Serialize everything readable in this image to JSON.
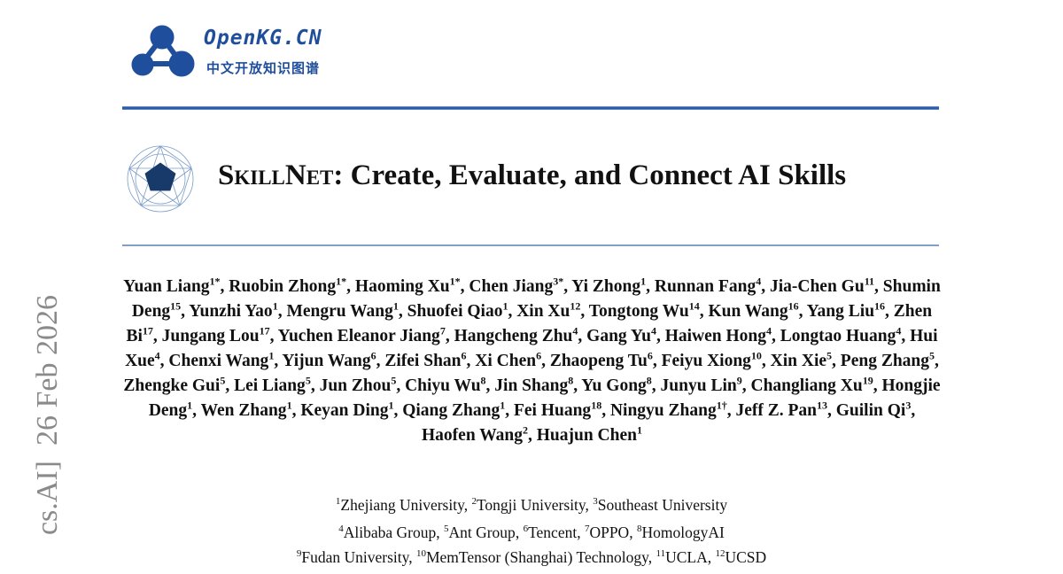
{
  "logo": {
    "name": "OpenKG.CN",
    "subtitle": "中文开放知识图谱"
  },
  "side_stamp": "cs.AI]  26 Feb 2026",
  "title": {
    "smallcaps": "SkillNet",
    "rest": ": Create, Evaluate, and Connect AI Skills"
  },
  "separator": ", ",
  "authors": [
    {
      "name": "Yuan Liang",
      "aff": "1*"
    },
    {
      "name": "Ruobin Zhong",
      "aff": "1*"
    },
    {
      "name": "Haoming Xu",
      "aff": "1*"
    },
    {
      "name": "Chen Jiang",
      "aff": "3*"
    },
    {
      "name": "Yi Zhong",
      "aff": "1"
    },
    {
      "name": "Runnan Fang",
      "aff": "4"
    },
    {
      "name": "Jia-Chen Gu",
      "aff": "11"
    },
    {
      "name": "Shumin Deng",
      "aff": "15"
    },
    {
      "name": "Yunzhi Yao",
      "aff": "1"
    },
    {
      "name": "Mengru Wang",
      "aff": "1"
    },
    {
      "name": "Shuofei Qiao",
      "aff": "1"
    },
    {
      "name": "Xin Xu",
      "aff": "12"
    },
    {
      "name": "Tongtong Wu",
      "aff": "14"
    },
    {
      "name": "Kun Wang",
      "aff": "16"
    },
    {
      "name": "Yang Liu",
      "aff": "16"
    },
    {
      "name": "Zhen Bi",
      "aff": "17"
    },
    {
      "name": "Jungang Lou",
      "aff": "17"
    },
    {
      "name": "Yuchen Eleanor Jiang",
      "aff": "7"
    },
    {
      "name": "Hangcheng Zhu",
      "aff": "4"
    },
    {
      "name": "Gang Yu",
      "aff": "4"
    },
    {
      "name": "Haiwen Hong",
      "aff": "4"
    },
    {
      "name": "Longtao Huang",
      "aff": "4"
    },
    {
      "name": "Hui Xue",
      "aff": "4"
    },
    {
      "name": "Chenxi Wang",
      "aff": "1"
    },
    {
      "name": "Yijun Wang",
      "aff": "6"
    },
    {
      "name": "Zifei Shan",
      "aff": "6"
    },
    {
      "name": "Xi Chen",
      "aff": "6"
    },
    {
      "name": "Zhaopeng Tu",
      "aff": "6"
    },
    {
      "name": "Feiyu Xiong",
      "aff": "10"
    },
    {
      "name": "Xin Xie",
      "aff": "5"
    },
    {
      "name": "Peng Zhang",
      "aff": "5"
    },
    {
      "name": "Zhengke Gui",
      "aff": "5"
    },
    {
      "name": "Lei Liang",
      "aff": "5"
    },
    {
      "name": "Jun Zhou",
      "aff": "5"
    },
    {
      "name": "Chiyu Wu",
      "aff": "8"
    },
    {
      "name": "Jin Shang",
      "aff": "8"
    },
    {
      "name": "Yu Gong",
      "aff": "8"
    },
    {
      "name": "Junyu Lin",
      "aff": "9"
    },
    {
      "name": "Changliang Xu",
      "aff": "19"
    },
    {
      "name": "Hongjie Deng",
      "aff": "1"
    },
    {
      "name": "Wen Zhang",
      "aff": "1"
    },
    {
      "name": "Keyan Ding",
      "aff": "1"
    },
    {
      "name": "Qiang Zhang",
      "aff": "1"
    },
    {
      "name": "Fei Huang",
      "aff": "18"
    },
    {
      "name": "Ningyu Zhang",
      "aff": "1†"
    },
    {
      "name": "Jeff Z. Pan",
      "aff": "13"
    },
    {
      "name": "Guilin Qi",
      "aff": "3"
    },
    {
      "name": "Haofen Wang",
      "aff": "2"
    },
    {
      "name": "Huajun Chen",
      "aff": "1"
    }
  ],
  "affiliations": [
    [
      {
        "num": "1",
        "name": "Zhejiang University"
      },
      {
        "num": "2",
        "name": "Tongji University"
      },
      {
        "num": "3",
        "name": "Southeast University"
      }
    ],
    [
      {
        "num": "4",
        "name": "Alibaba Group"
      },
      {
        "num": "5",
        "name": "Ant Group"
      },
      {
        "num": "6",
        "name": "Tencent"
      },
      {
        "num": "7",
        "name": "OPPO"
      },
      {
        "num": "8",
        "name": "HomologyAI"
      }
    ],
    [
      {
        "num": "9",
        "name": "Fudan University"
      },
      {
        "num": "10",
        "name": "MemTensor (Shanghai) Technology"
      },
      {
        "num": "11",
        "name": "UCLA"
      },
      {
        "num": "12",
        "name": "UCSD"
      }
    ]
  ]
}
